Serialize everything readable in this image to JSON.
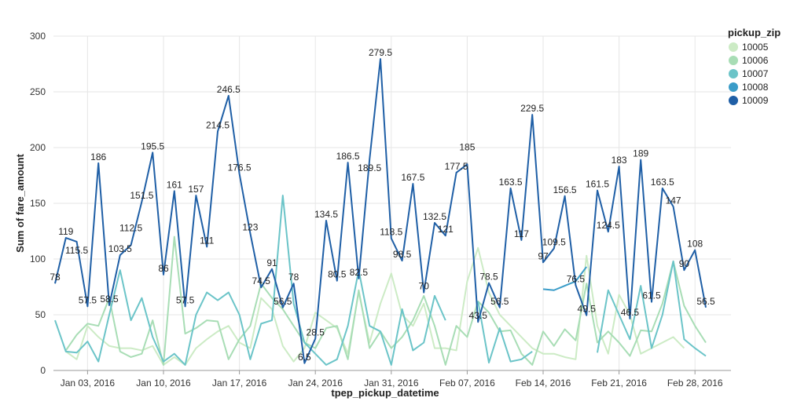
{
  "chart_data": {
    "type": "line",
    "xlabel": "tpep_pickup_datetime",
    "ylabel": "Sum of fare_amount",
    "ylim": [
      0,
      300
    ],
    "yticks": [
      "0",
      "50",
      "100",
      "150",
      "200",
      "250",
      "300"
    ],
    "xticks": [
      {
        "date": "2016-01-03",
        "label": "Jan 03, 2016"
      },
      {
        "date": "2016-01-10",
        "label": "Jan 10, 2016"
      },
      {
        "date": "2016-01-17",
        "label": "Jan 17, 2016"
      },
      {
        "date": "2016-01-24",
        "label": "Jan 24, 2016"
      },
      {
        "date": "2016-01-31",
        "label": "Jan 31, 2016"
      },
      {
        "date": "2016-02-07",
        "label": "Feb 07, 2016"
      },
      {
        "date": "2016-02-14",
        "label": "Feb 14, 2016"
      },
      {
        "date": "2016-02-21",
        "label": "Feb 21, 2016"
      },
      {
        "date": "2016-02-28",
        "label": "Feb 28, 2016"
      }
    ],
    "x_start": "2015-12-31",
    "x_end": "2016-02-29",
    "grid": true,
    "legend": {
      "title": "pickup_zip",
      "placement": "top-right"
    },
    "series": [
      {
        "name": "10005",
        "color": "#ccebc5",
        "labels": false,
        "values": [
          null,
          17,
          10,
          40,
          30,
          22,
          20,
          20,
          18,
          22,
          5,
          12,
          5,
          20,
          28,
          35,
          40,
          25,
          20,
          65,
          55,
          22,
          8,
          20,
          52,
          45,
          38,
          15,
          70,
          25,
          60,
          87,
          50,
          40,
          60,
          20,
          20,
          18,
          80,
          110,
          70,
          50,
          40,
          30,
          20,
          15,
          15,
          12,
          10,
          103,
          40,
          15,
          68,
          50,
          15,
          20,
          25,
          30,
          20,
          null,
          null
        ]
      },
      {
        "name": "10006",
        "color": "#a8ddb5",
        "labels": false,
        "values": [
          null,
          18,
          32,
          42,
          40,
          65,
          17,
          12,
          15,
          45,
          5,
          120,
          33,
          38,
          45,
          44,
          10,
          28,
          40,
          78,
          65,
          55,
          40,
          25,
          20,
          38,
          40,
          10,
          72,
          20,
          35,
          20,
          30,
          45,
          67,
          40,
          5,
          40,
          30,
          62,
          52,
          35,
          36,
          15,
          5,
          35,
          22,
          37,
          27,
          78,
          25,
          35,
          25,
          13,
          36,
          35,
          60,
          98,
          58,
          40,
          25
        ]
      },
      {
        "name": "10007",
        "color": "#6bc4c8",
        "labels": false,
        "values": [
          45,
          17,
          16,
          26,
          8,
          50,
          90,
          45,
          65,
          30,
          8,
          15,
          5,
          50,
          70,
          63,
          70,
          50,
          10,
          42,
          45,
          157,
          60,
          25,
          15,
          5,
          10,
          40,
          90,
          40,
          35,
          5,
          55,
          18,
          25,
          67,
          45,
          null,
          null,
          62,
          7,
          38,
          8,
          10,
          17,
          null,
          null,
          null,
          null,
          null,
          16,
          72,
          50,
          28,
          76,
          20,
          50,
          98,
          28,
          20,
          13
        ]
      },
      {
        "name": "10008",
        "color": "#3a9cc8",
        "labels": false,
        "values": [
          null,
          null,
          null,
          null,
          null,
          null,
          null,
          null,
          null,
          null,
          null,
          null,
          null,
          null,
          null,
          null,
          null,
          null,
          null,
          null,
          null,
          null,
          null,
          null,
          null,
          null,
          null,
          null,
          null,
          null,
          null,
          null,
          null,
          null,
          null,
          null,
          null,
          null,
          null,
          null,
          null,
          null,
          null,
          null,
          null,
          73,
          72,
          76,
          80,
          93,
          null,
          null,
          null,
          null,
          null,
          null,
          null,
          null,
          null,
          null,
          null
        ]
      },
      {
        "name": "10009",
        "color": "#1f5fa6",
        "labels": true,
        "values": [
          78,
          119,
          115.5,
          57.5,
          186,
          58.5,
          103.5,
          112.5,
          151.5,
          195.5,
          86,
          161,
          57.5,
          157,
          111,
          214.5,
          246.5,
          176.5,
          123,
          74.5,
          91,
          56.5,
          78,
          6.5,
          28.5,
          134.5,
          80.5,
          186.5,
          82.5,
          189.5,
          279.5,
          118.5,
          98.5,
          167.5,
          70,
          132.5,
          121,
          177.5,
          185,
          43.5,
          78.5,
          56.5,
          163.5,
          117,
          229.5,
          97,
          109.5,
          156.5,
          76.5,
          49.5,
          161.5,
          124.5,
          183,
          46.5,
          189,
          61.5,
          163.5,
          147,
          90,
          108,
          56.5
        ]
      }
    ]
  }
}
